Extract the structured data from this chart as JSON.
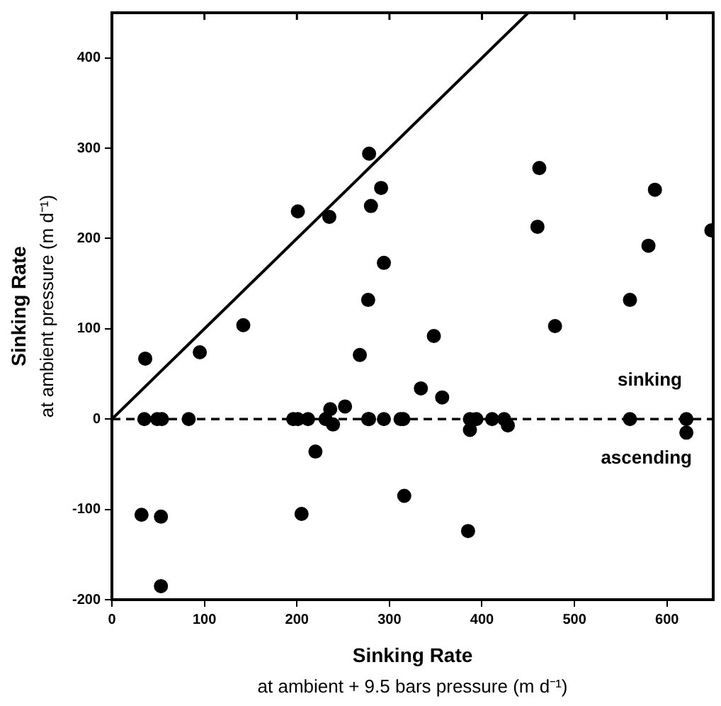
{
  "chart_data": {
    "type": "scatter",
    "xlabel": "Sinking Rate\nat ambient + 9.5 bars pressure (m d⁻¹)",
    "ylabel": "Sinking Rate\nat ambient pressure (m d⁻¹)",
    "xlim": [
      0,
      650
    ],
    "xticks": [
      0,
      100,
      200,
      300,
      400,
      500,
      600
    ],
    "ylim": [
      -200,
      450
    ],
    "yticks": [
      -200,
      -100,
      0,
      100,
      200,
      300,
      400
    ],
    "grid": false,
    "legend": false,
    "marker": "circle",
    "series": [
      {
        "color": "#000000",
        "x": [
          36,
          35,
          49,
          54,
          83,
          95,
          142,
          32,
          53,
          53,
          196,
          201,
          212,
          220,
          205,
          231,
          236,
          239,
          252,
          268,
          278,
          201,
          235,
          278,
          280,
          291,
          294,
          277,
          348,
          462,
          460,
          479,
          587,
          580,
          560,
          648,
          277,
          294,
          312,
          315,
          334,
          357,
          316,
          385,
          387,
          394,
          387,
          411,
          424,
          428,
          560,
          621,
          621
        ],
        "values": [
          67,
          0,
          0,
          0,
          0,
          74,
          104,
          -106,
          -108,
          -185,
          0,
          0,
          0,
          -36,
          -105,
          0,
          11,
          -6,
          14,
          71,
          0,
          230,
          224,
          294,
          236,
          256,
          173,
          132,
          92,
          278,
          213,
          103,
          254,
          192,
          132,
          209,
          0,
          0,
          0,
          0,
          34,
          24,
          -85,
          -124,
          0,
          0,
          -12,
          0,
          0,
          -7,
          0,
          0,
          -15
        ]
      },
      {
        "type": "line",
        "color": "#000000",
        "x": [
          0,
          450
        ],
        "values": [
          0,
          450
        ],
        "marker": "none",
        "line_style": "solid"
      }
    ],
    "ref_lines": [
      {
        "axis": "y",
        "value": 0,
        "color": "#000000",
        "line_style": "dashed"
      }
    ],
    "annotations": [
      "sinking",
      "ascending"
    ]
  }
}
